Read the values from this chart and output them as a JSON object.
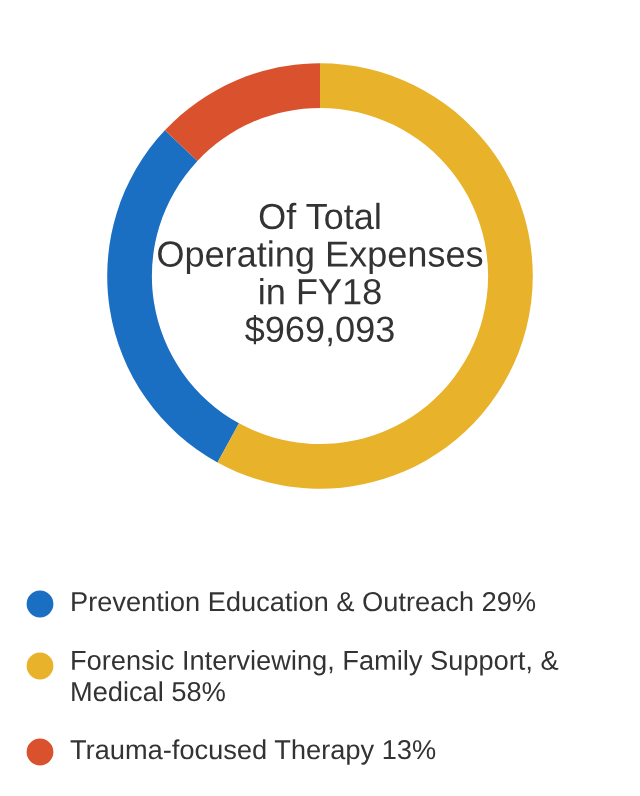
{
  "chart_data": {
    "type": "donut",
    "title": "Of Total\nOperating Expenses\nin FY18\n$969,093",
    "categories": [
      "Prevention Education & Outreach",
      "Forensic Interviewing, Family Support, & Medical",
      "Trauma-focused Therapy"
    ],
    "values": [
      29,
      58,
      13
    ],
    "value_labels": [
      "29%",
      "58%",
      "13%"
    ],
    "colors": [
      "#1b6fc3",
      "#e8b22b",
      "#d9522d"
    ],
    "legend": "bottom"
  }
}
